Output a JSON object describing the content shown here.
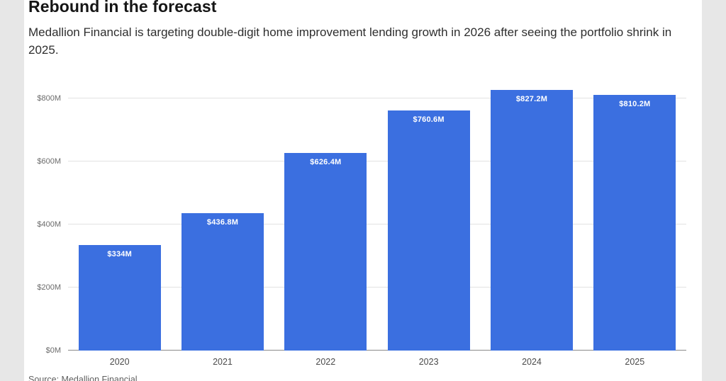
{
  "page": {
    "title": "Rebound in the forecast",
    "subtitle": "Medallion Financial is targeting double-digit home improvement lending growth in 2026 after seeing the portfolio shrink in 2025.",
    "source": "Source: Medallion Financial"
  },
  "chart_data": {
    "type": "bar",
    "title": "Rebound in the forecast",
    "categories": [
      "2020",
      "2021",
      "2022",
      "2023",
      "2024",
      "2025"
    ],
    "values": [
      334,
      436.8,
      626.4,
      760.6,
      827.2,
      810.2
    ],
    "value_labels": [
      "$334M",
      "$436.8M",
      "$626.4M",
      "$760.6M",
      "$827.2M",
      "$810.2M"
    ],
    "y_ticks": [
      "$0M",
      "$200M",
      "$400M",
      "$600M",
      "$800M"
    ],
    "y_tick_values": [
      0,
      200,
      400,
      600,
      800
    ],
    "ylim": [
      0,
      858
    ],
    "xlabel": "",
    "ylabel": "",
    "grid": "horizontal",
    "legend": "none",
    "bar_color": "#3b6fe0",
    "label_color": "#ffffff"
  }
}
